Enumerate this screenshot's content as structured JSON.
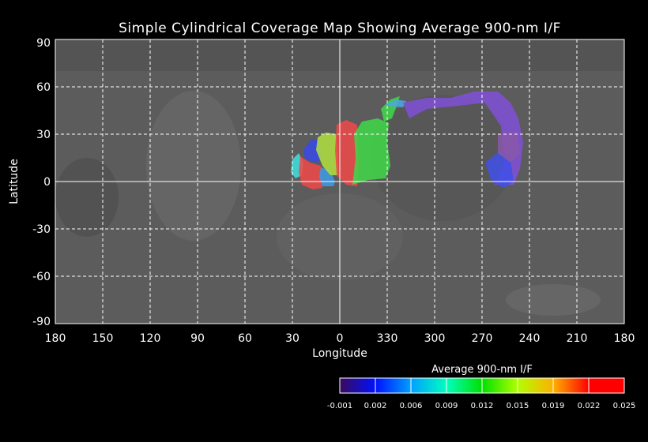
{
  "title": "Simple Cylindrical Coverage Map Showing Average 900-nm I/F",
  "chart_data": {
    "type": "map",
    "projection": "simple cylindrical",
    "xlabel": "Longitude",
    "ylabel": "Latitude",
    "x_ticks": [
      "180",
      "150",
      "120",
      "90",
      "60",
      "30",
      "0",
      "330",
      "300",
      "270",
      "240",
      "210",
      "180"
    ],
    "y_ticks": [
      "90",
      "60",
      "30",
      "0",
      "-30",
      "-60",
      "-90"
    ],
    "lon_range": [
      180,
      -180
    ],
    "lat_range": [
      -90,
      90
    ],
    "grid": true,
    "colorbar": {
      "title": "Average 900-nm I/F",
      "ticks": [
        "-0.001",
        "0.002",
        "0.006",
        "0.009",
        "0.012",
        "0.015",
        "0.019",
        "0.022",
        "0.025"
      ],
      "range": [
        -0.001,
        0.025
      ],
      "colors": [
        "#3a0a5a",
        "#0010ff",
        "#00a0ff",
        "#00ffc0",
        "#00e000",
        "#b0ff00",
        "#ffb000",
        "#ff0000"
      ]
    },
    "coverage_patches": [
      {
        "value": 0.01,
        "color": "#40e0e0",
        "points": [
          [
            30,
            14
          ],
          [
            26,
            18
          ],
          [
            23,
            12
          ],
          [
            24,
            4
          ],
          [
            28,
            2
          ],
          [
            31,
            6
          ]
        ]
      },
      {
        "value": 0.024,
        "color": "#f04848",
        "points": [
          [
            25,
            16
          ],
          [
            19,
            12
          ],
          [
            12,
            10
          ],
          [
            11,
            -4
          ],
          [
            17,
            -5
          ],
          [
            24,
            -2
          ],
          [
            26,
            6
          ]
        ]
      },
      {
        "value": 0.004,
        "color": "#3848e8",
        "points": [
          [
            23,
            20
          ],
          [
            18,
            27
          ],
          [
            13,
            26
          ],
          [
            11,
            14
          ],
          [
            15,
            12
          ],
          [
            22,
            14
          ]
        ]
      },
      {
        "value": 0.007,
        "color": "#3c9ae8",
        "points": [
          [
            12,
            9
          ],
          [
            6,
            7
          ],
          [
            3,
            0
          ],
          [
            4,
            -3
          ],
          [
            11,
            -3
          ],
          [
            13,
            3
          ]
        ]
      },
      {
        "value": 0.017,
        "color": "#b0e040",
        "points": [
          [
            14,
            28
          ],
          [
            9,
            31
          ],
          [
            2,
            30
          ],
          [
            1,
            4
          ],
          [
            6,
            4
          ],
          [
            11,
            10
          ],
          [
            15,
            20
          ]
        ]
      },
      {
        "value": 0.024,
        "color": "#f04848",
        "points": [
          [
            2,
            36
          ],
          [
            -4,
            39
          ],
          [
            -11,
            36
          ],
          [
            -12,
            10
          ],
          [
            -11,
            -3
          ],
          [
            -4,
            -2
          ],
          [
            2,
            4
          ],
          [
            3,
            20
          ]
        ]
      },
      {
        "value": 0.014,
        "color": "#40d848",
        "points": [
          [
            -9,
            30
          ],
          [
            -14,
            38
          ],
          [
            -24,
            40
          ],
          [
            -31,
            37
          ],
          [
            -30,
            25
          ],
          [
            -32,
            10
          ],
          [
            -29,
            2
          ],
          [
            -18,
            1
          ],
          [
            -8,
            -2
          ],
          [
            -10,
            15
          ]
        ]
      },
      {
        "value": 0.014,
        "color": "#40d848",
        "points": [
          [
            -26,
            46
          ],
          [
            -32,
            52
          ],
          [
            -38,
            54
          ],
          [
            -36,
            48
          ],
          [
            -33,
            40
          ],
          [
            -28,
            38
          ]
        ]
      },
      {
        "value": 0.008,
        "color": "#4aa8e0",
        "points": [
          [
            -28,
            48
          ],
          [
            -35,
            52
          ],
          [
            -42,
            51
          ],
          [
            -40,
            47
          ]
        ]
      },
      {
        "value": 0.001,
        "color": "#8050d8",
        "points": [
          [
            -40,
            50
          ],
          [
            -55,
            53
          ],
          [
            -70,
            53
          ],
          [
            -85,
            57
          ],
          [
            -100,
            57
          ],
          [
            -108,
            50
          ],
          [
            -113,
            40
          ],
          [
            -116,
            25
          ],
          [
            -114,
            8
          ],
          [
            -110,
            -2
          ],
          [
            -98,
            -2
          ],
          [
            -104,
            12
          ],
          [
            -102,
            35
          ],
          [
            -92,
            50
          ],
          [
            -75,
            48
          ],
          [
            -55,
            46
          ],
          [
            -44,
            40
          ]
        ]
      },
      {
        "value": 0.003,
        "color": "#4050e8",
        "points": [
          [
            -92,
            12
          ],
          [
            -102,
            20
          ],
          [
            -108,
            14
          ],
          [
            -110,
            0
          ],
          [
            -104,
            -4
          ],
          [
            -96,
            0
          ]
        ]
      },
      {
        "value": 0.001,
        "color": "#8a58a8",
        "points": [
          [
            -100,
            30
          ],
          [
            -112,
            32
          ],
          [
            -114,
            18
          ],
          [
            -108,
            12
          ],
          [
            -100,
            18
          ]
        ]
      }
    ]
  }
}
